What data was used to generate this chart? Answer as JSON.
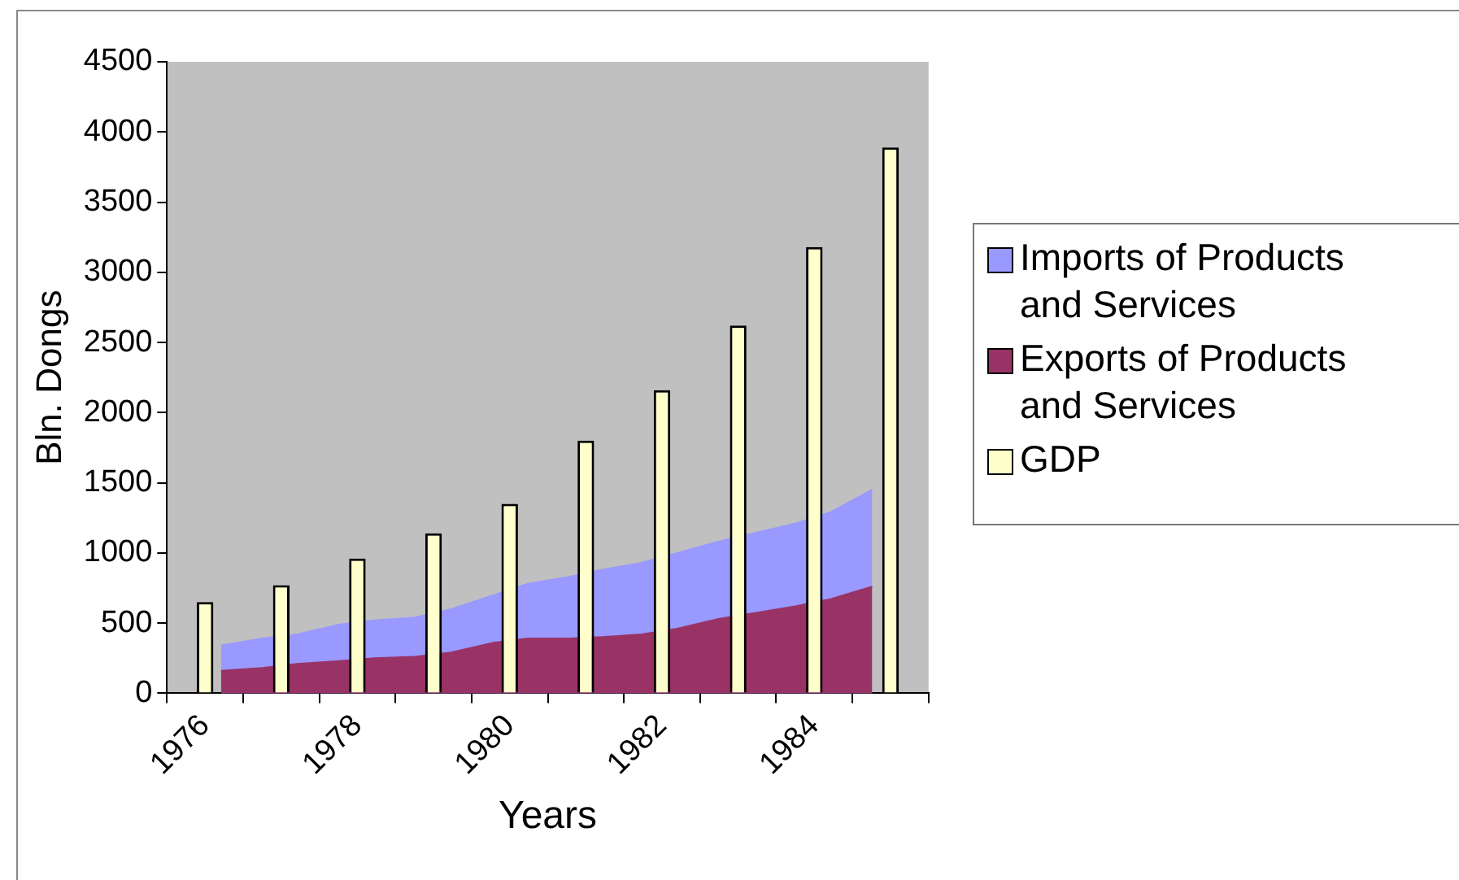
{
  "chart_data": {
    "type": "bar",
    "xlabel": "Years",
    "ylabel": "Bln. Dongs",
    "x": [
      1976,
      1977,
      1978,
      1979,
      1980,
      1981,
      1982,
      1983,
      1984,
      1985
    ],
    "xlim": [
      1975.5,
      1985.5
    ],
    "xticks": [
      {
        "value": 1975.5,
        "label": null
      },
      1976,
      {
        "value": 1976.5,
        "label": null
      },
      {
        "value": 1977.5,
        "label": null
      },
      1978,
      {
        "value": 1978.5,
        "label": null
      },
      {
        "value": 1979.5,
        "label": null
      },
      1980,
      {
        "value": 1980.5,
        "label": null
      },
      {
        "value": 1981.5,
        "label": null
      },
      1982,
      {
        "value": 1982.5,
        "label": null
      },
      {
        "value": 1983.5,
        "label": null
      },
      1984,
      {
        "value": 1984.5,
        "label": null
      },
      {
        "value": 1985.5,
        "label": null
      }
    ],
    "ylim": [
      0,
      4500
    ],
    "yticks": [
      0,
      500,
      1000,
      1500,
      2000,
      2500,
      3000,
      3500,
      4000,
      4500
    ],
    "grid": false,
    "legend": "right",
    "series": [
      {
        "name": "Imports of Products and Services",
        "type": "area",
        "color": "#9999ff",
        "x": [
          1976.21,
          1976.75,
          1977.21,
          1977.77,
          1978.22,
          1978.76,
          1979.23,
          1979.79,
          1980.24,
          1980.78,
          1981.21,
          1981.73,
          1982.2,
          1982.74,
          1983.2,
          1983.75,
          1984.21,
          1984.76
        ],
        "values": [
          340,
          390,
          420,
          490,
          520,
          540,
          600,
          700,
          780,
          830,
          880,
          930,
          1000,
          1080,
          1140,
          1210,
          1290,
          1450
        ]
      },
      {
        "name": "Exports of Products and Services",
        "type": "area",
        "color": "#993366",
        "x": [
          1976.21,
          1976.75,
          1977.21,
          1977.77,
          1978.22,
          1978.76,
          1979.23,
          1979.79,
          1980.24,
          1980.78,
          1981.21,
          1981.73,
          1982.2,
          1982.74,
          1983.2,
          1983.75,
          1984.21,
          1984.76
        ],
        "values": [
          160,
          180,
          210,
          230,
          250,
          260,
          290,
          360,
          390,
          390,
          400,
          420,
          460,
          530,
          570,
          620,
          670,
          760
        ]
      },
      {
        "name": "GDP",
        "color": "#ffffcc",
        "values": [
          650,
          770,
          960,
          1140,
          1350,
          1800,
          2160,
          2620,
          3180,
          3890
        ]
      }
    ]
  }
}
